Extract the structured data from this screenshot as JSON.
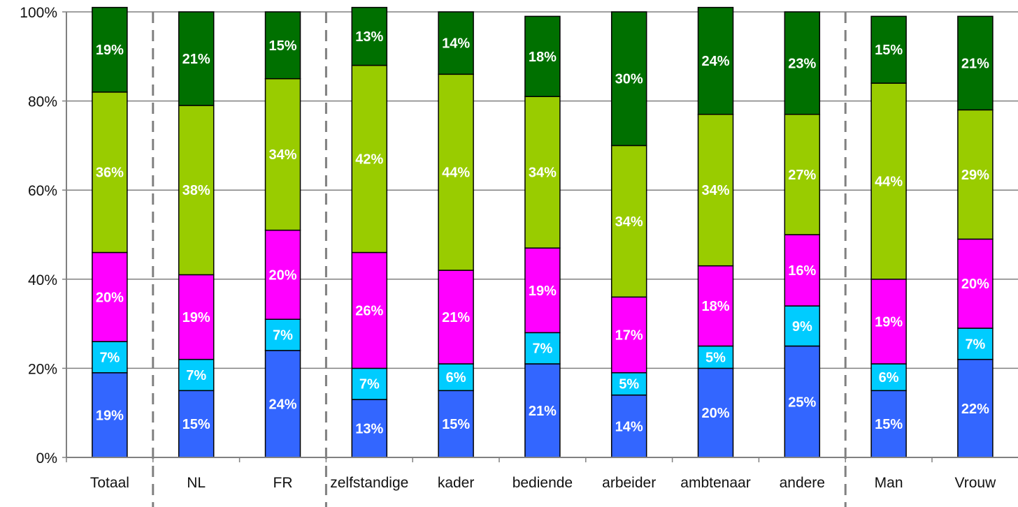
{
  "colors": {
    "background": "#ffffff",
    "gridline": "#808080",
    "axis": "#808080",
    "separator": "#808080",
    "bar_outline": "#000000",
    "label_text": "#ffffff",
    "tick_text": "#111111"
  },
  "chart_data": {
    "type": "bar",
    "stacked": true,
    "percent_stacked": true,
    "title": "",
    "xlabel": "",
    "ylabel": "",
    "ylim": [
      0,
      100
    ],
    "y_ticks": [
      "0%",
      "20%",
      "40%",
      "60%",
      "80%",
      "100%"
    ],
    "y_tick_values": [
      0,
      20,
      40,
      60,
      80,
      100
    ],
    "grid": true,
    "legend": "none",
    "categories": [
      "Totaal",
      "NL",
      "FR",
      "zelfstandige",
      "kader",
      "bediende",
      "arbeider",
      "ambtenaar",
      "andere",
      "Man",
      "Vrouw"
    ],
    "group_separators_after": [
      0,
      2,
      8
    ],
    "series": [
      {
        "color": "#3366ff",
        "values": [
          19,
          15,
          24,
          13,
          15,
          21,
          14,
          20,
          25,
          15,
          22
        ],
        "labels": [
          "19%",
          "15%",
          "24%",
          "13%",
          "15%",
          "21%",
          "14%",
          "20%",
          "25%",
          "15%",
          "22%"
        ]
      },
      {
        "color": "#00ccff",
        "values": [
          7,
          7,
          7,
          7,
          6,
          7,
          5,
          5,
          9,
          6,
          7
        ],
        "labels": [
          "7%",
          "7%",
          "7%",
          "7%",
          "6%",
          "7%",
          "5%",
          "5%",
          "9%",
          "6%",
          "7%"
        ]
      },
      {
        "color": "#ff00ff",
        "values": [
          20,
          19,
          20,
          26,
          21,
          19,
          17,
          18,
          16,
          19,
          20
        ],
        "labels": [
          "20%",
          "19%",
          "20%",
          "26%",
          "21%",
          "19%",
          "17%",
          "18%",
          "16%",
          "19%",
          "20%"
        ]
      },
      {
        "color": "#99cc00",
        "values": [
          36,
          38,
          34,
          42,
          44,
          34,
          34,
          34,
          27,
          44,
          29
        ],
        "labels": [
          "36%",
          "38%",
          "34%",
          "42%",
          "44%",
          "34%",
          "34%",
          "34%",
          "27%",
          "44%",
          "29%"
        ]
      },
      {
        "color": "#007000",
        "values": [
          19,
          21,
          15,
          13,
          14,
          18,
          30,
          24,
          23,
          15,
          21
        ],
        "labels": [
          "19%",
          "21%",
          "15%",
          "13%",
          "14%",
          "18%",
          "30%",
          "24%",
          "23%",
          "15%",
          "21%"
        ]
      }
    ]
  }
}
